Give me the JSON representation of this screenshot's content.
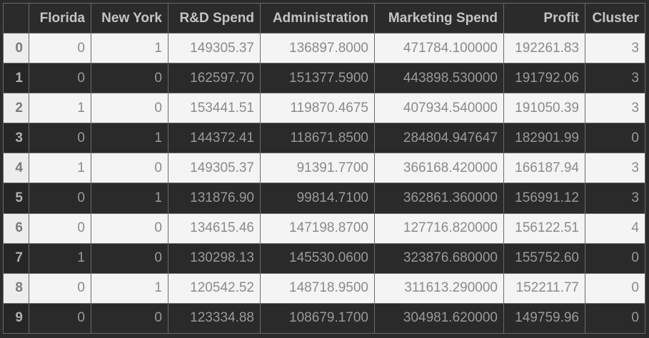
{
  "table": {
    "index_header": "",
    "columns": [
      "Florida",
      "New York",
      "R&D Spend",
      "Administration",
      "Marketing Spend",
      "Profit",
      "Cluster"
    ],
    "rows": [
      {
        "index": "0",
        "cells": [
          "0",
          "1",
          "149305.37",
          "136897.8000",
          "471784.100000",
          "192261.83",
          "3"
        ]
      },
      {
        "index": "1",
        "cells": [
          "0",
          "0",
          "162597.70",
          "151377.5900",
          "443898.530000",
          "191792.06",
          "3"
        ]
      },
      {
        "index": "2",
        "cells": [
          "1",
          "0",
          "153441.51",
          "119870.4675",
          "407934.540000",
          "191050.39",
          "3"
        ]
      },
      {
        "index": "3",
        "cells": [
          "0",
          "1",
          "144372.41",
          "118671.8500",
          "284804.947647",
          "182901.99",
          "0"
        ]
      },
      {
        "index": "4",
        "cells": [
          "1",
          "0",
          "149305.37",
          "91391.7700",
          "366168.420000",
          "166187.94",
          "3"
        ]
      },
      {
        "index": "5",
        "cells": [
          "0",
          "1",
          "131876.90",
          "99814.7100",
          "362861.360000",
          "156991.12",
          "3"
        ]
      },
      {
        "index": "6",
        "cells": [
          "0",
          "0",
          "134615.46",
          "147198.8700",
          "127716.820000",
          "156122.51",
          "4"
        ]
      },
      {
        "index": "7",
        "cells": [
          "1",
          "0",
          "130298.13",
          "145530.0600",
          "323876.680000",
          "155752.60",
          "0"
        ]
      },
      {
        "index": "8",
        "cells": [
          "0",
          "1",
          "120542.52",
          "148718.9500",
          "311613.290000",
          "152211.77",
          "0"
        ]
      },
      {
        "index": "9",
        "cells": [
          "0",
          "0",
          "123334.88",
          "108679.1700",
          "304981.620000",
          "149759.96",
          "0"
        ]
      }
    ]
  },
  "colors": {
    "background": "#2b2b2b",
    "light_row": "#f4f4f4",
    "dark_row": "#2a2a2a",
    "header_text": "#c4c4c4"
  }
}
